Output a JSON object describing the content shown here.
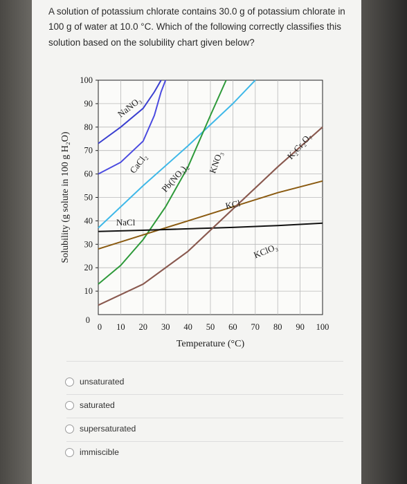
{
  "question": {
    "text": "A solution of potassium chlorate contains 30.0 g of potassium chlorate in 100 g of water at 10.0 °C. Which of the following correctly classifies this solution based on the solubility chart given below?"
  },
  "chart_data": {
    "type": "line",
    "xlabel": "Temperature (°C)",
    "ylabel": "Solubility (g solute in 100 g H₂O)",
    "xlim": [
      0,
      100
    ],
    "ylim": [
      0,
      100
    ],
    "x_ticks": [
      "0",
      "10",
      "20",
      "30",
      "40",
      "50",
      "60",
      "70",
      "80",
      "90",
      "100"
    ],
    "y_ticks": [
      "0",
      "10",
      "20",
      "30",
      "40",
      "50",
      "60",
      "70",
      "80",
      "90",
      "100"
    ],
    "grid": true,
    "series": [
      {
        "name": "NaNO₃",
        "color": "#3a3fd0",
        "x": [
          0,
          10,
          20,
          25,
          28
        ],
        "y": [
          73,
          80,
          88,
          95,
          100
        ]
      },
      {
        "name": "CaCl₂",
        "color": "#4a4ae0",
        "x": [
          0,
          10,
          20,
          25,
          28,
          30
        ],
        "y": [
          60,
          65,
          74,
          85,
          95,
          100
        ]
      },
      {
        "name": "Pb(NO₃)₂",
        "color": "#3fb8e8",
        "x": [
          0,
          20,
          40,
          60,
          70
        ],
        "y": [
          37,
          55,
          72,
          90,
          100
        ]
      },
      {
        "name": "KNO₃",
        "color": "#2e9a3a",
        "x": [
          0,
          10,
          20,
          30,
          40,
          50,
          57
        ],
        "y": [
          13,
          21,
          32,
          46,
          63,
          85,
          100
        ]
      },
      {
        "name": "K₂Cr₂O₇",
        "color": "#8a5a50",
        "x": [
          0,
          20,
          40,
          60,
          80,
          100
        ],
        "y": [
          4,
          13,
          27,
          45,
          63,
          80
        ]
      },
      {
        "name": "KCl",
        "color": "#8a5a10",
        "x": [
          0,
          20,
          40,
          60,
          80,
          100
        ],
        "y": [
          28,
          34,
          40,
          46,
          52,
          57
        ]
      },
      {
        "name": "NaCl",
        "color": "#111111",
        "x": [
          0,
          20,
          40,
          60,
          80,
          100
        ],
        "y": [
          35.5,
          36,
          36.6,
          37.2,
          38,
          39
        ]
      },
      {
        "name": "KClO₃",
        "color": "#8a5a50",
        "x": [
          0,
          20,
          40,
          60,
          80,
          100
        ],
        "y": [
          4,
          13,
          27,
          45,
          63,
          80
        ]
      }
    ],
    "labels": [
      {
        "text": "NaNO₃",
        "series": "NaNO₃"
      },
      {
        "text": "CaCl₂",
        "series": "CaCl₂"
      },
      {
        "text": "Pb(NO₃)₂",
        "series": "Pb(NO₃)₂"
      },
      {
        "text": "KNO₃",
        "series": "KNO₃"
      },
      {
        "text": "K₂Cr₂O₇",
        "series": "K₂Cr₂O₇"
      },
      {
        "text": "KCl",
        "series": "KCl"
      },
      {
        "text": "NaCl",
        "series": "NaCl"
      },
      {
        "text": "KClO₃",
        "series": "KClO₃"
      }
    ]
  },
  "options": [
    {
      "label": "unsaturated"
    },
    {
      "label": "saturated"
    },
    {
      "label": "supersaturated"
    },
    {
      "label": "immiscible"
    }
  ]
}
